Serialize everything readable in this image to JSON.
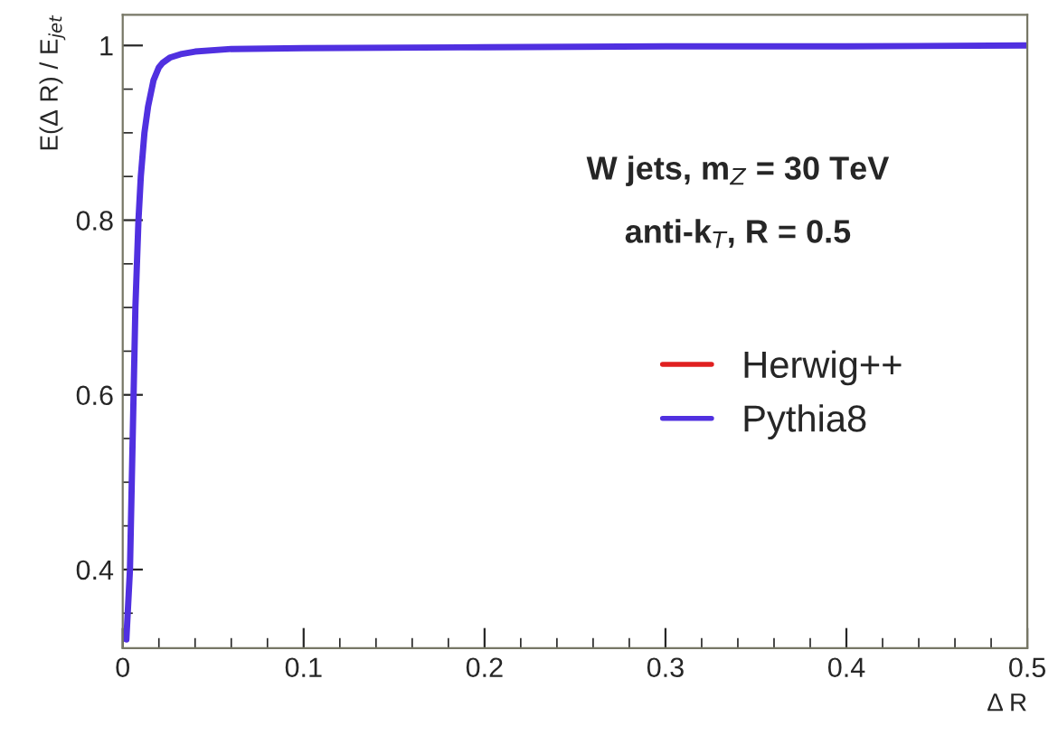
{
  "chart_data": {
    "type": "line",
    "xlabel": "Δ R",
    "ylabel": "E(Δ R) / E$_{jet}$",
    "x": [
      0.002,
      0.003,
      0.004,
      0.005,
      0.006,
      0.007,
      0.0087,
      0.01,
      0.012,
      0.014,
      0.017,
      0.02,
      0.022,
      0.026,
      0.032,
      0.04,
      0.06,
      0.1,
      0.2,
      0.3,
      0.4,
      0.5
    ],
    "series": [
      {
        "name": "Herwig++",
        "color": "#e02020",
        "values": [
          null,
          null,
          null,
          null,
          null,
          null,
          null,
          null,
          null,
          null,
          null,
          null,
          null,
          null,
          null,
          null,
          null,
          null,
          null,
          null,
          null,
          null
        ]
      },
      {
        "name": "Pythia8",
        "color": "#5030e0",
        "values": [
          0.32,
          0.36,
          0.4,
          0.5,
          0.6,
          0.7,
          0.8,
          0.85,
          0.9,
          0.93,
          0.96,
          0.975,
          0.98,
          0.986,
          0.99,
          0.993,
          0.996,
          0.997,
          0.998,
          0.999,
          0.999,
          1.0
        ]
      }
    ],
    "xlim": [
      0,
      0.5
    ],
    "xticks": [
      0,
      0.1,
      0.2,
      0.3,
      0.4,
      0.5
    ],
    "ylim": [
      0.31,
      1.035
    ],
    "yticks": [
      {
        "value": 0.4,
        "label": "0.4"
      },
      {
        "value": 0.6,
        "label": "0.6"
      },
      {
        "value": 0.8,
        "label": "0.8"
      },
      {
        "value": 1,
        "label": "1"
      }
    ],
    "annotations": [
      "W jets, m$_{Z}$ = 30 TeV",
      "anti-k$_{T}$, R = 0.5"
    ],
    "legend": "right",
    "grid": false
  }
}
